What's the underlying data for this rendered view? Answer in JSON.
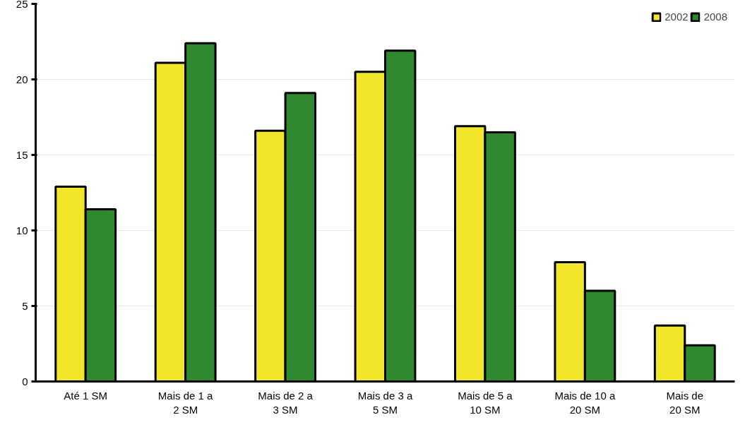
{
  "chart_data": {
    "type": "bar",
    "categories": [
      "Até 1 SM",
      "Mais de 1 a 2 SM",
      "Mais de 2 a 3 SM",
      "Mais de 3 a 5 SM",
      "Mais de 5 a 10 SM",
      "Mais de 10 a 20 SM",
      "Mais de 20 SM"
    ],
    "series": [
      {
        "name": "2002",
        "color": "#f2e62a",
        "values": [
          12.9,
          21.1,
          16.6,
          20.5,
          16.9,
          7.9,
          3.7
        ]
      },
      {
        "name": "2008",
        "color": "#2f8a2f",
        "values": [
          11.4,
          22.4,
          19.1,
          21.9,
          16.5,
          6.0,
          2.4
        ]
      }
    ],
    "ylim": [
      0,
      25
    ],
    "yticks": [
      0,
      5,
      10,
      15,
      20,
      25
    ],
    "grid": "y",
    "legend": "top right"
  }
}
